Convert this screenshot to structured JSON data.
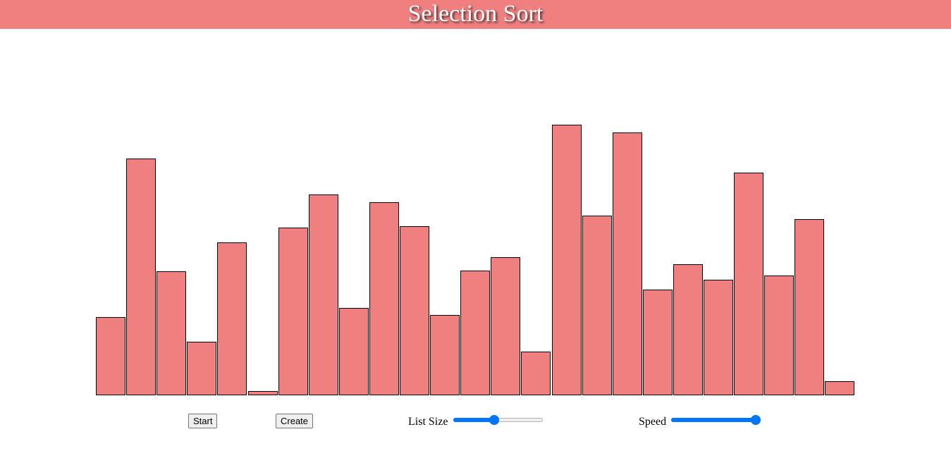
{
  "header": {
    "title": "Selection Sort",
    "color": "#f08080"
  },
  "bars": {
    "color": "#f08080",
    "max_value": 383,
    "values": [
      111,
      335,
      176,
      76,
      216,
      6,
      237,
      284,
      124,
      273,
      239,
      114,
      177,
      195,
      62,
      383,
      254,
      372,
      150,
      186,
      164,
      315,
      170,
      249,
      20
    ]
  },
  "controls": {
    "start_label": "Start",
    "create_label": "Create",
    "list_size_label": "List Size",
    "list_size_fraction": 0.45,
    "speed_label": "Speed",
    "speed_fraction": 1.0,
    "slider_color": "#0075ff"
  }
}
